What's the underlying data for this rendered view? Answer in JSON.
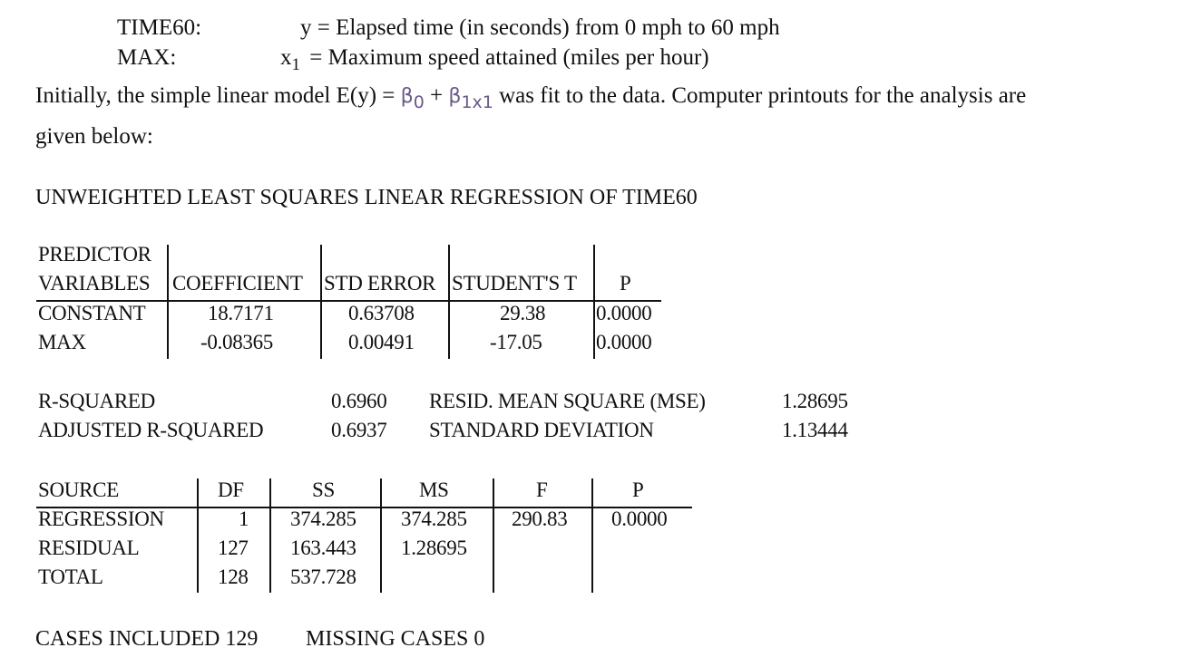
{
  "definitions": [
    {
      "name": "TIME60:",
      "symbol": "y",
      "desc": "= Elapsed time (in seconds) from 0 mph to 60 mph"
    },
    {
      "name": "MAX:",
      "symbol": "x",
      "symbol_sub": "1",
      "desc": "= Maximum speed attained (miles per hour)"
    }
  ],
  "intro": {
    "part1": "Initially, the simple linear model E(y) =",
    "beta0": "β",
    "beta0_sub": "0",
    "plus": "+",
    "beta1": "β",
    "beta1_sub": "1x1",
    "part2": "was fit to the data. Computer printouts for the analysis are",
    "line2": "given below:"
  },
  "heading": "UNWEIGHTED LEAST SQUARES LINEAR REGRESSION OF TIME60",
  "coef_table": {
    "header_line1": "PREDICTOR",
    "headers": [
      "VARIABLES",
      "COEFFICIENT",
      "STD ERROR",
      "STUDENT'S T",
      "P"
    ],
    "rows": [
      [
        "CONSTANT",
        "18.7171",
        "0.63708",
        "29.38",
        "0.0000"
      ],
      [
        "MAX",
        "-0.08365",
        "0.00491",
        "-17.05",
        "0.0000"
      ]
    ]
  },
  "fit_stats": {
    "r_squared_label": "R-SQUARED",
    "r_squared": "0.6960",
    "adj_r_squared_label": "ADJUSTED R-SQUARED",
    "adj_r_squared": "0.6937",
    "mse_label": "RESID. MEAN SQUARE (MSE)",
    "mse": "1.28695",
    "sd_label": "STANDARD DEVIATION",
    "sd": "1.13444"
  },
  "anova_table": {
    "headers": [
      "SOURCE",
      "DF",
      "SS",
      "MS",
      "F",
      "P"
    ],
    "rows": [
      [
        "REGRESSION",
        "1",
        "374.285",
        "374.285",
        "290.83",
        "0.0000"
      ],
      [
        "RESIDUAL",
        "127",
        "163.443",
        "1.28695",
        "",
        ""
      ],
      [
        "TOTAL",
        "128",
        "537.728",
        "",
        "",
        ""
      ]
    ]
  },
  "footer": {
    "cases": "CASES INCLUDED 129",
    "missing": "MISSING CASES 0"
  }
}
